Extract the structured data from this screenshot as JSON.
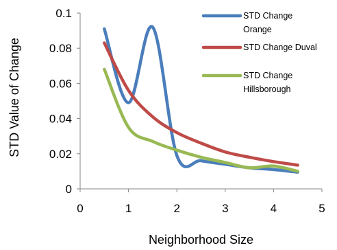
{
  "chart_data": {
    "type": "line",
    "title": "",
    "xlabel": "Neighborhood Size",
    "ylabel": "STD Value of Change",
    "xlim": [
      0,
      5
    ],
    "ylim": [
      0,
      0.1
    ],
    "x_ticks": [
      "0",
      "1",
      "2",
      "3",
      "4",
      "5"
    ],
    "y_ticks": [
      "0",
      "0.02",
      "0.04",
      "0.06",
      "0.08",
      "0.1"
    ],
    "grid": false,
    "legend_position": "top-right",
    "smooth": true,
    "series": [
      {
        "name": "STD Change Orange",
        "legend_lines": [
          "STD Change",
          "Orange"
        ],
        "color": "#4a7ebb",
        "x": [
          0.5,
          1.0,
          1.5,
          2.0,
          2.5,
          3.0,
          3.5,
          4.0,
          4.5
        ],
        "y": [
          0.091,
          0.049,
          0.092,
          0.019,
          0.016,
          0.014,
          0.012,
          0.011,
          0.0095
        ]
      },
      {
        "name": "STD Change Duval",
        "legend_lines": [
          "STD Change Duval"
        ],
        "color": "#be4b48",
        "x": [
          0.5,
          1.0,
          1.5,
          2.0,
          2.5,
          3.0,
          3.5,
          4.0,
          4.5
        ],
        "y": [
          0.083,
          0.056,
          0.041,
          0.032,
          0.026,
          0.021,
          0.018,
          0.0155,
          0.0135
        ]
      },
      {
        "name": "STD Change Hillsborough",
        "legend_lines": [
          "STD Change",
          "Hillsborough"
        ],
        "color": "#98b954",
        "x": [
          0.5,
          1.0,
          1.5,
          2.0,
          2.5,
          3.0,
          3.5,
          4.0,
          4.5
        ],
        "y": [
          0.068,
          0.035,
          0.027,
          0.022,
          0.018,
          0.015,
          0.012,
          0.013,
          0.01
        ]
      }
    ]
  }
}
